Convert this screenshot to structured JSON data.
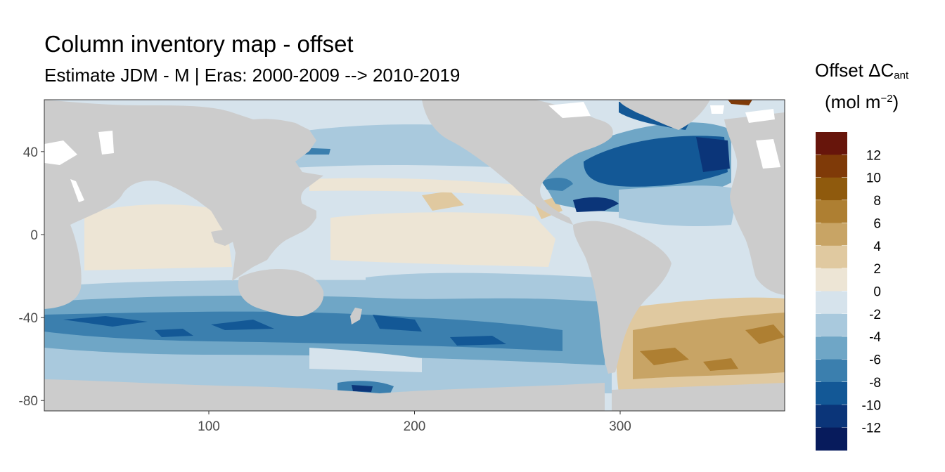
{
  "title": "Column inventory map - offset",
  "subtitle": "Estimate JDM - M | Eras: 2000-2009 --> 2010-2019",
  "legend": {
    "title_main": "Offset ΔC",
    "title_sub": "ant",
    "unit_prefix": "(mol m",
    "unit_sup": "−2",
    "unit_suffix": ")",
    "bins": [
      {
        "label": "12",
        "color": "#67150b"
      },
      {
        "label": "10",
        "color": "#7f3a08"
      },
      {
        "label": "8",
        "color": "#8f5a0d"
      },
      {
        "label": "6",
        "color": "#ae7f32"
      },
      {
        "label": "4",
        "color": "#c8a465"
      },
      {
        "label": "2",
        "color": "#e0c9a0"
      },
      {
        "label": "0",
        "color": "#ede5d5"
      },
      {
        "label": "-2",
        "color": "#d6e3ec"
      },
      {
        "label": "-4",
        "color": "#a9c9dd"
      },
      {
        "label": "-6",
        "color": "#6fa6c6"
      },
      {
        "label": "-8",
        "color": "#3b7fae"
      },
      {
        "label": "-10",
        "color": "#135896"
      },
      {
        "label": "-12",
        "color": "#0b3579"
      },
      {
        "label": "",
        "color": "#071b5c"
      }
    ]
  },
  "axes": {
    "x_ticks": [
      100,
      200,
      300
    ],
    "y_ticks": [
      40,
      0,
      -40,
      -80
    ],
    "x_range": [
      20,
      380
    ],
    "y_range": [
      -85,
      65
    ]
  },
  "colors": {
    "land": "#cccccc",
    "panel_border": "#333333"
  }
}
